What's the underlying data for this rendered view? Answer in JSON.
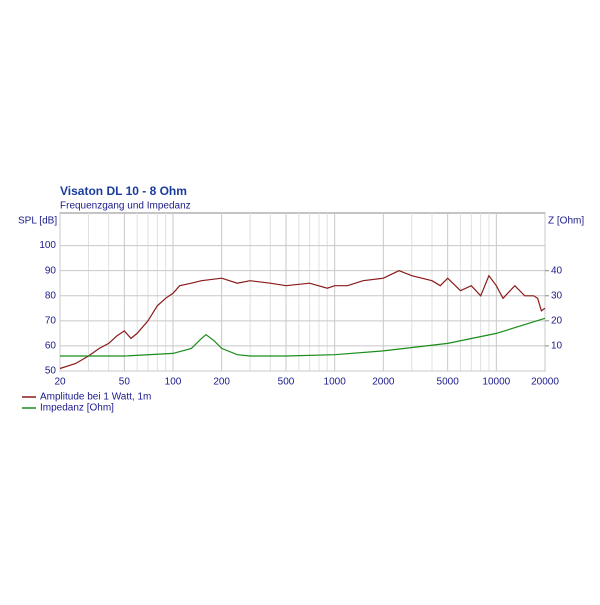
{
  "chart_data": {
    "type": "line",
    "title": "Visaton DL 10 - 8 Ohm",
    "subtitle": "Frequenzgang und Impedanz",
    "ylabel": "SPL [dB]",
    "y2label": "Z [Ohm]",
    "xscale": "log",
    "xlim": [
      20,
      20000
    ],
    "xticks": [
      20,
      50,
      100,
      200,
      500,
      1000,
      2000,
      5000,
      10000,
      20000
    ],
    "xminorticks": [
      30,
      40,
      60,
      70,
      80,
      90,
      300,
      400,
      600,
      700,
      800,
      900,
      3000,
      4000,
      6000,
      7000,
      8000,
      9000
    ],
    "ylim": [
      50,
      113
    ],
    "yticks": [
      50,
      60,
      70,
      80,
      90,
      100
    ],
    "y2lim": [
      0,
      63
    ],
    "y2ticks": [
      10,
      20,
      30,
      40
    ],
    "grid": true,
    "legend": "bottom-left",
    "series": [
      {
        "name": "Amplitude bei 1 Watt, 1m",
        "color": "#8b1a1a",
        "x": [
          20,
          25,
          30,
          35,
          40,
          45,
          50,
          55,
          60,
          70,
          80,
          90,
          100,
          110,
          130,
          150,
          200,
          250,
          300,
          400,
          500,
          700,
          900,
          1000,
          1200,
          1500,
          2000,
          2500,
          3000,
          4000,
          4500,
          5000,
          6000,
          7000,
          8000,
          9000,
          10000,
          11000,
          13000,
          15000,
          17000,
          18000,
          19000,
          20000
        ],
        "values": [
          51,
          53,
          56,
          59,
          61,
          64,
          66,
          63,
          65,
          70,
          76,
          79,
          81,
          84,
          85,
          86,
          87,
          85,
          86,
          85,
          84,
          85,
          83,
          84,
          84,
          86,
          87,
          90,
          88,
          86,
          84,
          87,
          82,
          84,
          80,
          88,
          84,
          79,
          84,
          80,
          80,
          79,
          74,
          75
        ]
      },
      {
        "name": "Impedanz [Ohm]",
        "color": "#1a8c1a",
        "axis": "y2",
        "x": [
          20,
          50,
          100,
          130,
          150,
          160,
          180,
          200,
          250,
          300,
          500,
          1000,
          2000,
          5000,
          10000,
          20000
        ],
        "values": [
          6,
          6,
          7,
          9,
          13,
          14.5,
          12,
          9,
          6.5,
          6,
          6,
          6.5,
          8,
          11,
          15,
          21
        ]
      }
    ]
  }
}
